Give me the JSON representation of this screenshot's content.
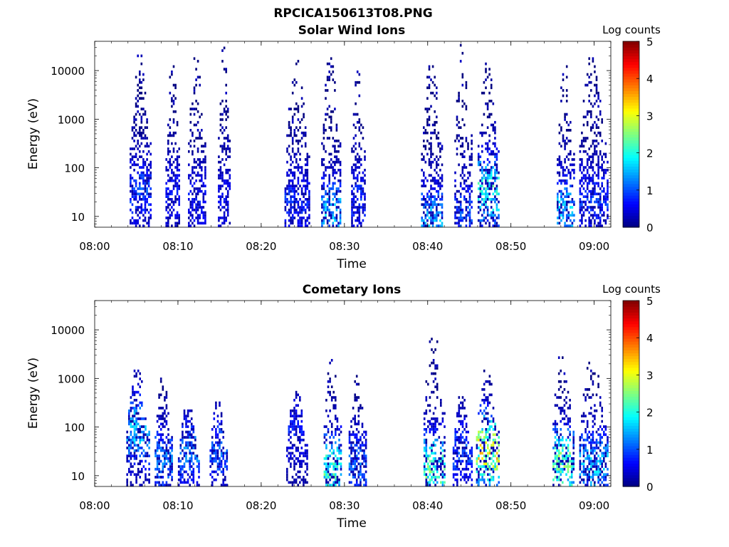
{
  "figure_title": "RPCICA150613T08.PNG",
  "chart_data": [
    {
      "type": "heatmap",
      "title": "Solar Wind Ions",
      "xlabel": "Time",
      "ylabel": "Energy (eV)",
      "y_scale": "log",
      "xlim": [
        "08:00",
        "09:02"
      ],
      "ylim": [
        6,
        40000
      ],
      "x_ticks": [
        "08:00",
        "08:10",
        "08:20",
        "08:30",
        "08:40",
        "08:50",
        "09:00"
      ],
      "y_ticks": [
        "10",
        "100",
        "1000",
        "10000"
      ],
      "colorbar": {
        "label": "Log counts",
        "ticks": [
          "0",
          "1",
          "2",
          "3",
          "4",
          "5"
        ],
        "range": [
          0,
          5
        ],
        "colormap": "jet"
      },
      "grid": false,
      "sweeps": [
        {
          "start_min": 4.2,
          "end_min": 6.8,
          "emin": 6,
          "emax": 20000,
          "peak": 1.2,
          "peak_e": 30
        },
        {
          "start_min": 8.5,
          "end_min": 10.2,
          "emin": 6,
          "emax": 12000,
          "peak": 0.9,
          "peak_e": 30
        },
        {
          "start_min": 11.2,
          "end_min": 13.2,
          "emin": 6,
          "emax": 20000,
          "peak": 0.9,
          "peak_e": 20
        },
        {
          "start_min": 14.8,
          "end_min": 16.2,
          "emin": 6,
          "emax": 28000,
          "peak": 0.8,
          "peak_e": 20
        },
        {
          "start_min": 22.8,
          "end_min": 25.8,
          "emin": 6,
          "emax": 15000,
          "peak": 1.0,
          "peak_e": 20
        },
        {
          "start_min": 27.2,
          "end_min": 29.5,
          "emin": 6,
          "emax": 20000,
          "peak": 2.0,
          "peak_e": 10
        },
        {
          "start_min": 30.8,
          "end_min": 32.5,
          "emin": 6,
          "emax": 12000,
          "peak": 1.0,
          "peak_e": 20
        },
        {
          "start_min": 39.2,
          "end_min": 41.8,
          "emin": 6,
          "emax": 15000,
          "peak": 1.8,
          "peak_e": 8
        },
        {
          "start_min": 43.2,
          "end_min": 45.2,
          "emin": 6,
          "emax": 35000,
          "peak": 1.3,
          "peak_e": 10
        },
        {
          "start_min": 46.0,
          "end_min": 48.5,
          "emin": 6,
          "emax": 15000,
          "peak": 2.5,
          "peak_e": 30
        },
        {
          "start_min": 55.5,
          "end_min": 57.5,
          "emin": 6,
          "emax": 12000,
          "peak": 1.9,
          "peak_e": 12
        },
        {
          "start_min": 58.2,
          "end_min": 61.5,
          "emin": 6,
          "emax": 18000,
          "peak": 1.1,
          "peak_e": 20
        }
      ]
    },
    {
      "type": "heatmap",
      "title": "Cometary Ions",
      "xlabel": "Time",
      "ylabel": "Energy (eV)",
      "y_scale": "log",
      "xlim": [
        "08:00",
        "09:02"
      ],
      "ylim": [
        6,
        40000
      ],
      "x_ticks": [
        "08:00",
        "08:10",
        "08:20",
        "08:30",
        "08:40",
        "08:50",
        "09:00"
      ],
      "y_ticks": [
        "10",
        "100",
        "1000",
        "10000"
      ],
      "colorbar": {
        "label": "Log counts",
        "ticks": [
          "0",
          "1",
          "2",
          "3",
          "4",
          "5"
        ],
        "range": [
          0,
          5
        ],
        "colormap": "jet"
      },
      "grid": false,
      "sweeps": [
        {
          "start_min": 3.8,
          "end_min": 6.5,
          "emin": 6,
          "emax": 1500,
          "peak": 2.0,
          "peak_e": 80
        },
        {
          "start_min": 7.2,
          "end_min": 9.2,
          "emin": 6,
          "emax": 1000,
          "peak": 1.5,
          "peak_e": 20
        },
        {
          "start_min": 10.0,
          "end_min": 12.5,
          "emin": 6,
          "emax": 250,
          "peak": 1.5,
          "peak_e": 30
        },
        {
          "start_min": 13.8,
          "end_min": 15.8,
          "emin": 6,
          "emax": 300,
          "peak": 1.4,
          "peak_e": 30
        },
        {
          "start_min": 23.0,
          "end_min": 25.5,
          "emin": 6,
          "emax": 500,
          "peak": 0.9,
          "peak_e": 80
        },
        {
          "start_min": 27.5,
          "end_min": 29.5,
          "emin": 6,
          "emax": 2400,
          "peak": 2.6,
          "peak_e": 12
        },
        {
          "start_min": 30.5,
          "end_min": 32.5,
          "emin": 6,
          "emax": 1500,
          "peak": 1.4,
          "peak_e": 15
        },
        {
          "start_min": 39.5,
          "end_min": 42.0,
          "emin": 6,
          "emax": 10000,
          "peak": 2.8,
          "peak_e": 12
        },
        {
          "start_min": 43.0,
          "end_min": 45.2,
          "emin": 6,
          "emax": 400,
          "peak": 1.2,
          "peak_e": 30
        },
        {
          "start_min": 45.8,
          "end_min": 48.5,
          "emin": 6,
          "emax": 1500,
          "peak": 3.7,
          "peak_e": 30
        },
        {
          "start_min": 55.0,
          "end_min": 57.5,
          "emin": 6,
          "emax": 4000,
          "peak": 3.0,
          "peak_e": 15
        },
        {
          "start_min": 58.2,
          "end_min": 61.5,
          "emin": 6,
          "emax": 2500,
          "peak": 1.9,
          "peak_e": 15
        }
      ]
    }
  ]
}
